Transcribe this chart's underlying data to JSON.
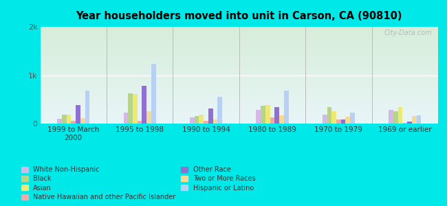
{
  "title": "Year householders moved into unit in Carson, CA (90810)",
  "categories": [
    "1999 to March\n2000",
    "1995 to 1998",
    "1990 to 1994",
    "1980 to 1989",
    "1970 to 1979",
    "1969 or earlier"
  ],
  "series": {
    "White Non-Hispanic": [
      100,
      230,
      130,
      290,
      190,
      290
    ],
    "Black": [
      180,
      620,
      150,
      370,
      340,
      250
    ],
    "Asian": [
      190,
      610,
      190,
      380,
      250,
      340
    ],
    "Native Hawaiian and other Pacific Islander": [
      50,
      50,
      60,
      130,
      80,
      20
    ],
    "Other Race": [
      390,
      780,
      310,
      340,
      80,
      40
    ],
    "Two or More Races": [
      120,
      260,
      80,
      170,
      140,
      150
    ],
    "Hispanic or Latino": [
      680,
      1230,
      550,
      680,
      230,
      175
    ]
  },
  "colors": {
    "White Non-Hispanic": "#d4b8e8",
    "Black": "#b8d48c",
    "Asian": "#ecea74",
    "Native Hawaiian and other Pacific Islander": "#f4a8a8",
    "Other Race": "#9070d0",
    "Two or More Races": "#f4d898",
    "Hispanic or Latino": "#b8d0f4"
  },
  "ylim": [
    0,
    2000
  ],
  "ytick_labels": [
    "0",
    "1k",
    "2k"
  ],
  "bg_outer": "#00e8e8",
  "watermark": "City-Data.com",
  "bar_width": 0.07
}
